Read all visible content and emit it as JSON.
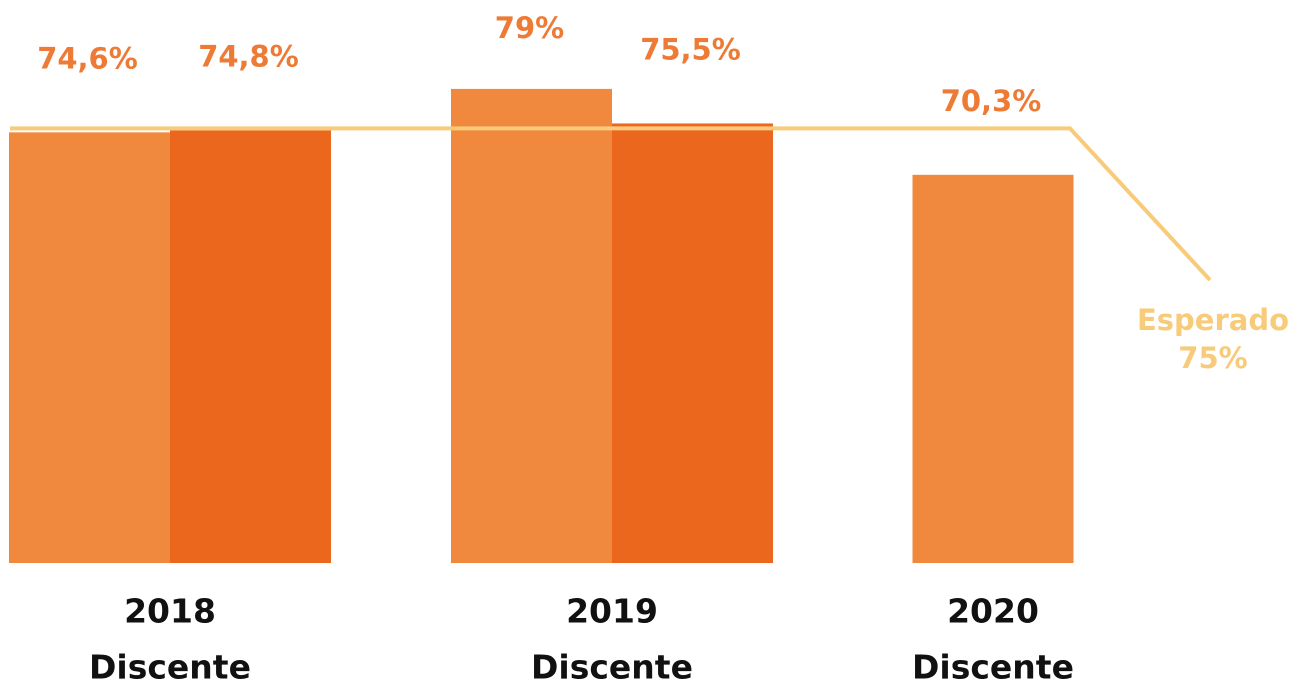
{
  "chart_data": {
    "type": "bar",
    "categories": [
      [
        "2018",
        "Discente"
      ],
      [
        "2019",
        "Discente"
      ],
      [
        "2020",
        "Discente"
      ]
    ],
    "series": [
      {
        "color": "#f0883e",
        "values": [
          74.6,
          79,
          70.3
        ],
        "value_labels": [
          "74,6%",
          "79%",
          "70,3%"
        ]
      },
      {
        "color": "#eb671e",
        "values": [
          74.8,
          75.5,
          null
        ],
        "value_labels": [
          "74,8%",
          "75,5%",
          null
        ]
      }
    ],
    "ylim": [
      31,
      88
    ],
    "reference": {
      "label": "Esperado",
      "value": 75,
      "value_label": "75%",
      "color": "#f8cb7a"
    }
  }
}
